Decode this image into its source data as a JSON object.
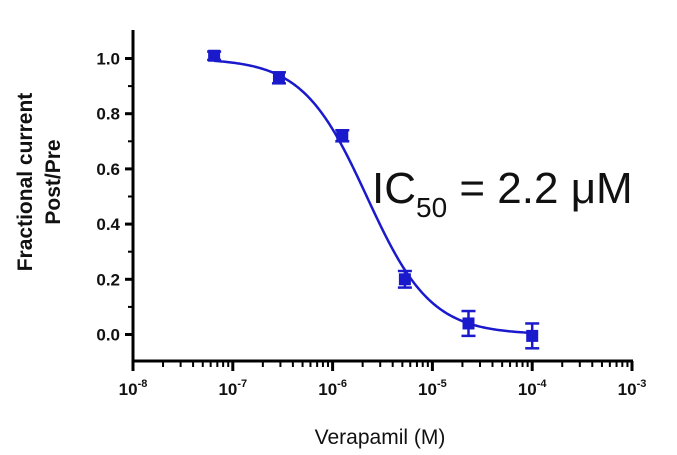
{
  "chart_data": {
    "type": "scatter",
    "xscale": "log",
    "xlim": [
      1e-08,
      0.001
    ],
    "ylim": [
      -0.1,
      1.1
    ],
    "x_tick_labels": [
      {
        "base": "10",
        "exp": "-8"
      },
      {
        "base": "10",
        "exp": "-7"
      },
      {
        "base": "10",
        "exp": "-6"
      },
      {
        "base": "10",
        "exp": "-5"
      },
      {
        "base": "10",
        "exp": "-4"
      },
      {
        "base": "10",
        "exp": "-3"
      }
    ],
    "y_tick_labels": [
      "0.0",
      "0.2",
      "0.4",
      "0.6",
      "0.8",
      "1.0"
    ],
    "xlabel": "Verapamil (M)",
    "ylabel_line1": "Fractional current",
    "ylabel_line2": "Post/Pre",
    "annotation": {
      "main": "IC",
      "sub": "50",
      "rest": " = 2.2 μM"
    },
    "color": "#1a1acc",
    "points": [
      {
        "x": 6.5e-08,
        "y": 1.01,
        "err": 0.015
      },
      {
        "x": 2.9e-07,
        "y": 0.93,
        "err": 0.02
      },
      {
        "x": 1.25e-06,
        "y": 0.72,
        "err": 0.02
      },
      {
        "x": 5.3e-06,
        "y": 0.2,
        "err": 0.03
      },
      {
        "x": 2.3e-05,
        "y": 0.04,
        "err": 0.045
      },
      {
        "x": 0.0001,
        "y": -0.005,
        "err": 0.045
      }
    ],
    "fit": {
      "top": 1.0,
      "bottom": 0.0,
      "ic50": 2.2e-06,
      "hill": 1.35
    }
  }
}
